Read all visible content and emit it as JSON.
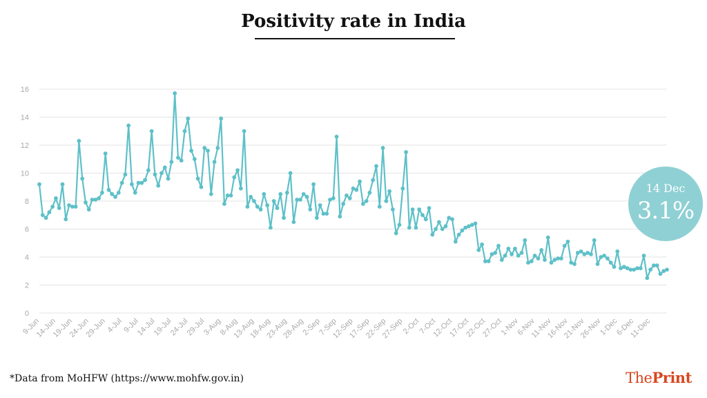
{
  "title": "Positivity rate in India",
  "source_note": "*Data from MoHFW (https://www.mohfw.gov.in)",
  "logo": {
    "part1": "The",
    "part2": "Print"
  },
  "badge": {
    "date": "14 Dec",
    "value": "3.1%"
  },
  "colors": {
    "line": "#5ec0c8",
    "badge": "#8fd0d4",
    "logo": "#d7461f",
    "grid": "#e3e3e3",
    "tick_text": "#a9a9a9"
  },
  "chart_data": {
    "type": "line",
    "title": "Positivity rate in India",
    "xlabel": "",
    "ylabel": "",
    "ylim": [
      0,
      16
    ],
    "y_ticks": [
      0,
      2,
      4,
      6,
      8,
      10,
      12,
      14,
      16
    ],
    "grid": true,
    "x_tick_labels": [
      "9-Jun",
      "14-Jun",
      "19-Jun",
      "24-Jun",
      "29-Jun",
      "4-Jul",
      "9-Jul",
      "14-Jul",
      "19-Jul",
      "24-Jul",
      "29-Jul",
      "3-Aug",
      "8-Aug",
      "13-Aug",
      "18-Aug",
      "23-Aug",
      "28-Aug",
      "2-Sep",
      "7-Sep",
      "12-Sep",
      "17-Sep",
      "22-Sep",
      "27-Sep",
      "2-Oct",
      "7-Oct",
      "12-Oct",
      "17-Oct",
      "22-Oct",
      "27-Oct",
      "1-Nov",
      "6-Nov",
      "11-Nov",
      "16-Nov",
      "21-Nov",
      "26-Nov",
      "1-Dec",
      "6-Dec",
      "11-Dec"
    ],
    "start_date": "9-Jun",
    "end_date": "14-Dec",
    "series": [
      {
        "values": [
          9.2,
          7.0,
          6.8,
          7.2,
          7.6,
          8.2,
          7.5,
          9.2,
          6.7,
          7.7,
          7.6,
          7.6,
          12.3,
          9.6,
          7.9,
          7.4,
          8.1,
          8.1,
          8.2,
          8.6,
          11.4,
          8.8,
          8.5,
          8.3,
          8.6,
          9.3,
          9.9,
          13.4,
          9.2,
          8.6,
          9.3,
          9.3,
          9.5,
          10.2,
          13.0,
          9.9,
          9.1,
          10.0,
          10.4,
          9.6,
          10.8,
          15.7,
          11.1,
          10.9,
          13.0,
          13.9,
          11.6,
          11.0,
          9.6,
          9.0,
          11.8,
          11.6,
          8.5,
          10.8,
          11.8,
          13.9,
          7.8,
          8.4,
          8.4,
          9.7,
          10.2,
          8.9,
          13.0,
          7.6,
          8.3,
          8.0,
          7.6,
          7.4,
          8.5,
          7.7,
          6.1,
          8.0,
          7.5,
          8.5,
          6.8,
          8.6,
          10.0,
          6.5,
          8.1,
          8.1,
          8.5,
          8.3,
          7.4,
          9.2,
          6.8,
          7.7,
          7.1,
          7.1,
          8.1,
          8.2,
          12.6,
          6.9,
          7.8,
          8.4,
          8.2,
          8.9,
          8.8,
          9.4,
          7.8,
          8.0,
          8.6,
          9.5,
          10.5,
          7.6,
          11.8,
          8.0,
          8.7,
          7.4,
          5.7,
          6.3,
          8.9,
          11.5,
          6.1,
          7.4,
          6.1,
          7.4,
          7.0,
          6.7,
          7.5,
          5.6,
          6.0,
          6.5,
          6.0,
          6.2,
          6.8,
          6.7,
          5.1,
          5.6,
          5.9,
          6.1,
          6.2,
          6.3,
          6.4,
          4.5,
          4.9,
          3.7,
          3.7,
          4.2,
          4.3,
          4.8,
          3.8,
          4.1,
          4.6,
          4.2,
          4.6,
          4.1,
          4.3,
          5.2,
          3.6,
          3.7,
          4.1,
          3.9,
          4.5,
          3.8,
          5.4,
          3.6,
          3.8,
          3.9,
          3.9,
          4.8,
          5.1,
          3.6,
          3.5,
          4.3,
          4.4,
          4.2,
          4.3,
          4.2,
          5.2,
          3.5,
          4.0,
          4.1,
          3.9,
          3.6,
          3.3,
          4.4,
          3.2,
          3.3,
          3.2,
          3.1,
          3.1,
          3.2,
          3.2,
          4.1,
          2.5,
          3.1,
          3.4,
          3.4,
          2.8,
          3.0,
          3.1
        ]
      }
    ]
  }
}
